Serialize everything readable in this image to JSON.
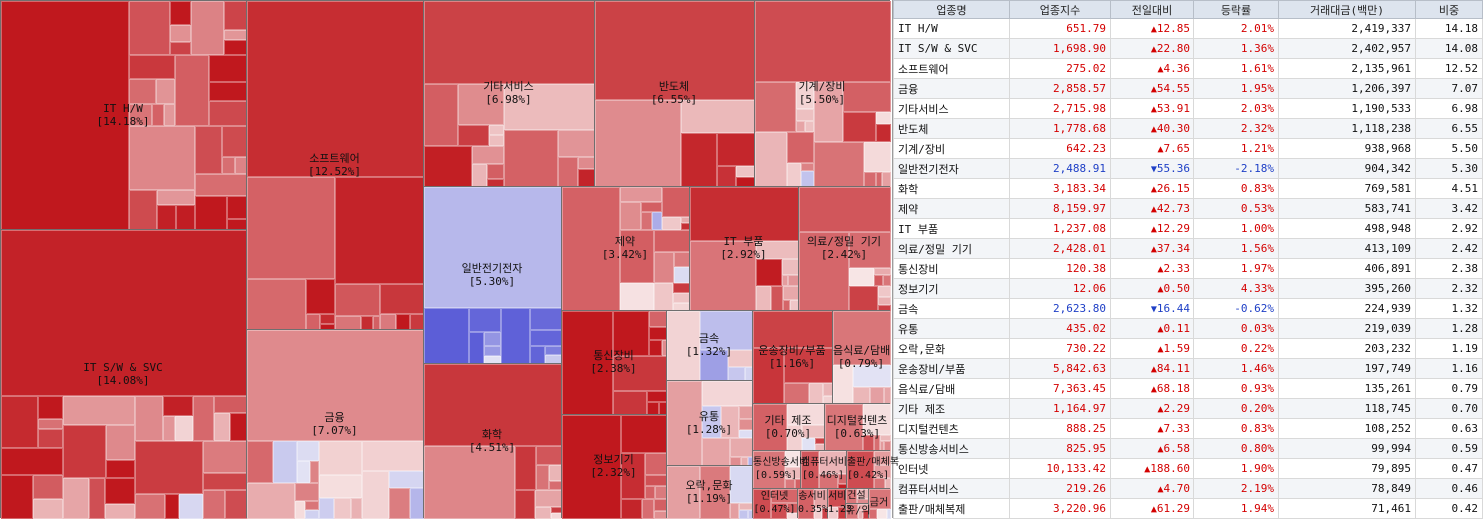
{
  "table": {
    "headers": [
      "업종명",
      "업종지수",
      "전일대비",
      "등락률",
      "거래대금(백만)",
      "비중"
    ],
    "rows": [
      {
        "name": "IT H/W",
        "index": "651.79",
        "dir": "up",
        "change": "12.85",
        "rate": "2.01%",
        "volume": "2,419,337",
        "share": "14.18"
      },
      {
        "name": "IT S/W & SVC",
        "index": "1,698.90",
        "dir": "up",
        "change": "22.80",
        "rate": "1.36%",
        "volume": "2,402,957",
        "share": "14.08"
      },
      {
        "name": "소프트웨어",
        "index": "275.02",
        "dir": "up",
        "change": "4.36",
        "rate": "1.61%",
        "volume": "2,135,961",
        "share": "12.52"
      },
      {
        "name": "금융",
        "index": "2,858.57",
        "dir": "up",
        "change": "54.55",
        "rate": "1.95%",
        "volume": "1,206,397",
        "share": "7.07"
      },
      {
        "name": "기타서비스",
        "index": "2,715.98",
        "dir": "up",
        "change": "53.91",
        "rate": "2.03%",
        "volume": "1,190,533",
        "share": "6.98"
      },
      {
        "name": "반도체",
        "index": "1,778.68",
        "dir": "up",
        "change": "40.30",
        "rate": "2.32%",
        "volume": "1,118,238",
        "share": "6.55"
      },
      {
        "name": "기계/장비",
        "index": "642.23",
        "dir": "up",
        "change": "7.65",
        "rate": "1.21%",
        "volume": "938,968",
        "share": "5.50"
      },
      {
        "name": "일반전기전자",
        "index": "2,488.91",
        "dir": "down",
        "change": "55.36",
        "rate": "-2.18%",
        "volume": "904,342",
        "share": "5.30"
      },
      {
        "name": "화학",
        "index": "3,183.34",
        "dir": "up",
        "change": "26.15",
        "rate": "0.83%",
        "volume": "769,581",
        "share": "4.51"
      },
      {
        "name": "제약",
        "index": "8,159.97",
        "dir": "up",
        "change": "42.73",
        "rate": "0.53%",
        "volume": "583,741",
        "share": "3.42"
      },
      {
        "name": "IT 부품",
        "index": "1,237.08",
        "dir": "up",
        "change": "12.29",
        "rate": "1.00%",
        "volume": "498,948",
        "share": "2.92"
      },
      {
        "name": "의료/정밀 기기",
        "index": "2,428.01",
        "dir": "up",
        "change": "37.34",
        "rate": "1.56%",
        "volume": "413,109",
        "share": "2.42"
      },
      {
        "name": "통신장비",
        "index": "120.38",
        "dir": "up",
        "change": "2.33",
        "rate": "1.97%",
        "volume": "406,891",
        "share": "2.38"
      },
      {
        "name": "정보기기",
        "index": "12.06",
        "dir": "up",
        "change": "0.50",
        "rate": "4.33%",
        "volume": "395,260",
        "share": "2.32"
      },
      {
        "name": "금속",
        "index": "2,623.80",
        "dir": "down",
        "change": "16.44",
        "rate": "-0.62%",
        "volume": "224,939",
        "share": "1.32"
      },
      {
        "name": "유통",
        "index": "435.02",
        "dir": "up",
        "change": "0.11",
        "rate": "0.03%",
        "volume": "219,039",
        "share": "1.28"
      },
      {
        "name": "오락,문화",
        "index": "730.22",
        "dir": "up",
        "change": "1.59",
        "rate": "0.22%",
        "volume": "203,232",
        "share": "1.19"
      },
      {
        "name": "운송장비/부품",
        "index": "5,842.63",
        "dir": "up",
        "change": "84.11",
        "rate": "1.46%",
        "volume": "197,749",
        "share": "1.16"
      },
      {
        "name": "음식료/담배",
        "index": "7,363.45",
        "dir": "up",
        "change": "68.18",
        "rate": "0.93%",
        "volume": "135,261",
        "share": "0.79"
      },
      {
        "name": "기타 제조",
        "index": "1,164.97",
        "dir": "up",
        "change": "2.29",
        "rate": "0.20%",
        "volume": "118,745",
        "share": "0.70"
      },
      {
        "name": "디지털컨텐츠",
        "index": "888.25",
        "dir": "up",
        "change": "7.33",
        "rate": "0.83%",
        "volume": "108,252",
        "share": "0.63"
      },
      {
        "name": "통신방송서비스",
        "index": "825.95",
        "dir": "up",
        "change": "6.58",
        "rate": "0.80%",
        "volume": "99,994",
        "share": "0.59"
      },
      {
        "name": "인터넷",
        "index": "10,133.42",
        "dir": "up",
        "change": "188.60",
        "rate": "1.90%",
        "volume": "79,895",
        "share": "0.47"
      },
      {
        "name": "컴퓨터서비스",
        "index": "219.26",
        "dir": "up",
        "change": "4.70",
        "rate": "2.19%",
        "volume": "78,849",
        "share": "0.46"
      },
      {
        "name": "출판/매체복제",
        "index": "3,220.96",
        "dir": "up",
        "change": "61.29",
        "rate": "1.94%",
        "volume": "71,461",
        "share": "0.42"
      }
    ]
  },
  "treemap": {
    "sectors": [
      {
        "key": "it-hw",
        "name": "IT H/W",
        "pct": "[14.18%]",
        "heat": 0.8
      },
      {
        "key": "it-sw-svc",
        "name": "IT S/W & SVC",
        "pct": "[14.08%]",
        "heat": 0.7
      },
      {
        "key": "software",
        "name": "소프트웨어",
        "pct": "[12.52%]",
        "heat": 0.65
      },
      {
        "key": "finance",
        "name": "금융",
        "pct": "[7.07%]",
        "heat": 0.2
      },
      {
        "key": "other-services",
        "name": "기타서비스",
        "pct": "[6.98%]",
        "heat": 0.55
      },
      {
        "key": "semiconductor",
        "name": "반도체",
        "pct": "[6.55%]",
        "heat": 0.55
      },
      {
        "key": "machinery",
        "name": "기계/장비",
        "pct": "[5.50%]",
        "heat": 0.5
      },
      {
        "key": "general-electronics",
        "name": "일반전기전자",
        "pct": "[5.30%]",
        "heat": -0.6
      },
      {
        "key": "chemical",
        "name": "화학",
        "pct": "[4.51%]",
        "heat": 0.6
      },
      {
        "key": "pharma",
        "name": "제약",
        "pct": "[3.42%]",
        "heat": 0.4
      },
      {
        "key": "it-parts",
        "name": "IT 부품",
        "pct": "[2.92%]",
        "heat": 0.65
      },
      {
        "key": "medical",
        "name": "의료/정밀 기기",
        "pct": "[2.42%]",
        "heat": 0.45
      },
      {
        "key": "telecom-equip",
        "name": "통신장비",
        "pct": "[2.38%]",
        "heat": 0.8
      },
      {
        "key": "info-devices",
        "name": "정보기기",
        "pct": "[2.32%]",
        "heat": 0.95
      },
      {
        "key": "metal",
        "name": "금속",
        "pct": "[1.32%]",
        "heat": -0.15
      },
      {
        "key": "distribution",
        "name": "유통",
        "pct": "[1.28%]",
        "heat": 0.1
      },
      {
        "key": "entertainment",
        "name": "오락,문화",
        "pct": "[1.19%]",
        "heat": 0.1
      },
      {
        "key": "transport",
        "name": "운송장비/부품",
        "pct": "[1.16%]",
        "heat": 0.55
      },
      {
        "key": "food",
        "name": "음식료/담배",
        "pct": "[0.79%]",
        "heat": 0.3
      },
      {
        "key": "other-mfg",
        "name": "기타 제조",
        "pct": "[0.70%]",
        "heat": 0.4
      },
      {
        "key": "digital-contents",
        "name": "디지털컨텐츠",
        "pct": "[0.63%]",
        "heat": 0.3
      },
      {
        "key": "broadcast",
        "name": "통신방송서비",
        "pct": "[0.59%]",
        "heat": 0.3
      },
      {
        "key": "computer-svc",
        "name": "컴퓨터서비",
        "pct": "[0.46%]",
        "heat": 0.45
      },
      {
        "key": "publishing",
        "name": "출판/매체복",
        "pct": "[0.42%]",
        "heat": 0.5
      },
      {
        "key": "internet",
        "name": "인터넷",
        "pct": "[0.47%]",
        "heat": 0.5
      },
      {
        "key": "small-a",
        "name": "송서비",
        "pct": "0.35%",
        "heat": 0.4
      },
      {
        "key": "small-b",
        "name": "서비",
        "pct": "1.23",
        "heat": 0.5
      },
      {
        "key": "small-c",
        "name": "건설",
        "pct": "",
        "heat": 0.3
      },
      {
        "key": "small-d",
        "name": "유/의",
        "pct": "",
        "heat": 0.3
      },
      {
        "key": "small-e",
        "name": "",
        "pct": "금거",
        "heat": 0.3
      }
    ]
  },
  "colors": {
    "up_text": "#d40000",
    "down_text": "#1e3fc6",
    "strong_red": "#c0181d",
    "pale_red": "#f6d8d8",
    "pale_blue": "#d4d8f0",
    "strong_blue": "#5c62c8",
    "header_bg": "#dde4ee"
  },
  "icons": {
    "up": "red-up-triangle-icon",
    "down": "blue-down-triangle-icon"
  }
}
